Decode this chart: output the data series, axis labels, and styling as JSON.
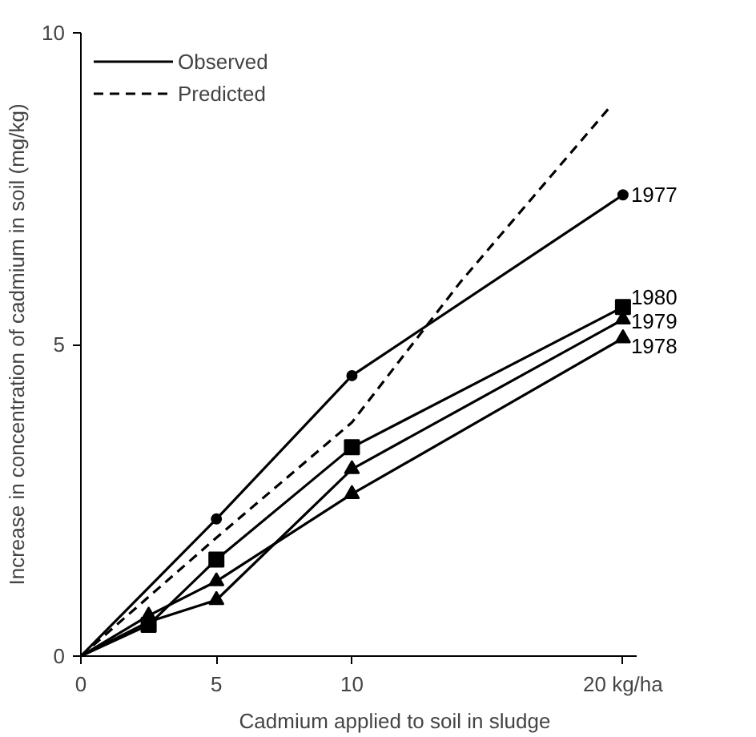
{
  "chart_data": {
    "type": "line",
    "xlabel": "Cadmium applied to soil in sludge",
    "ylabel": "Increase in concentration of cadmium in soil (mg/kg)",
    "xlim": [
      0,
      20.5
    ],
    "xticks": [
      0,
      5,
      10,
      {
        "value": 20,
        "label": "20 kg/ha"
      }
    ],
    "ylim": [
      0,
      10
    ],
    "yticks": [
      0,
      5,
      10
    ],
    "grid": false,
    "legend": "top left",
    "annotations": [
      "Observed"
    ],
    "series": [
      {
        "name": "1977",
        "color": "#000000",
        "marker": "circle",
        "line_style": "solid",
        "x": [
          0,
          5,
          10,
          20
        ],
        "values": [
          0,
          2.2,
          4.5,
          7.4
        ]
      },
      {
        "name": "1979",
        "color": "#000000",
        "marker": "triangle",
        "line_style": "solid",
        "x": [
          0,
          2.5,
          5,
          10,
          20
        ],
        "values": [
          0,
          0.55,
          0.9,
          3.0,
          5.4
        ]
      },
      {
        "name": "1980",
        "color": "#000000",
        "marker": "square",
        "line_style": "solid",
        "x": [
          0,
          2.5,
          5,
          10,
          20
        ],
        "values": [
          0,
          0.5,
          1.55,
          3.35,
          5.6
        ]
      },
      {
        "name": "1978",
        "color": "#000000",
        "marker": "triangle",
        "line_style": "solid",
        "x": [
          0,
          2.5,
          5,
          10,
          20
        ],
        "values": [
          0,
          0.65,
          1.2,
          2.6,
          5.1
        ]
      },
      {
        "name": "Predicted",
        "color": "#000000",
        "marker": "none",
        "line_style": "dashed",
        "x": [
          0,
          5,
          10,
          14,
          19.5
        ],
        "values": [
          0,
          1.9,
          3.75,
          6.0,
          8.8
        ]
      }
    ]
  }
}
